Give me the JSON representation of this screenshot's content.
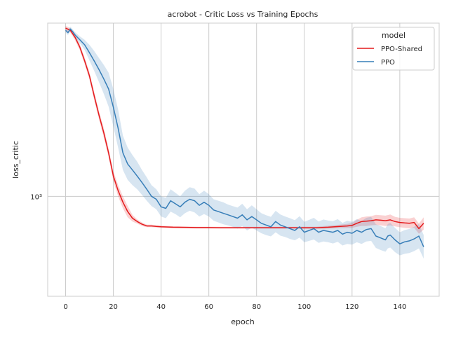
{
  "chart_data": {
    "type": "line",
    "title": "acrobot - Critic Loss vs Training Epochs",
    "xlabel": "epoch",
    "ylabel": "loss_critic",
    "xlim": [
      -7.5,
      156.5
    ],
    "ylim_log10": [
      2.7,
      3.52
    ],
    "yscale": "log",
    "grid": true,
    "legend": {
      "title": "model",
      "placement": "top-right"
    },
    "x_ticks": [
      0,
      20,
      40,
      60,
      80,
      100,
      120,
      140
    ],
    "x_tick_labels": [
      "0",
      "20",
      "40",
      "60",
      "80",
      "100",
      "120",
      "140"
    ],
    "y_ticks": [
      1000
    ],
    "y_tick_labels": [
      "10³"
    ],
    "series": [
      {
        "name": "PPO-Shared",
        "color": "#e41a1c",
        "epochs": [
          0,
          2,
          4,
          6,
          8,
          10,
          12,
          14,
          16,
          18,
          20,
          22,
          24,
          26,
          28,
          30,
          32,
          34,
          36,
          38,
          40,
          45,
          50,
          55,
          60,
          65,
          70,
          75,
          80,
          85,
          90,
          95,
          100,
          105,
          110,
          115,
          118,
          120,
          122,
          124,
          126,
          128,
          130,
          132,
          134,
          136,
          138,
          140,
          142,
          144,
          146,
          148,
          150
        ],
        "values": [
          3200,
          3150,
          3000,
          2800,
          2550,
          2300,
          2000,
          1750,
          1550,
          1350,
          1150,
          1040,
          960,
          900,
          860,
          840,
          825,
          815,
          815,
          812,
          810,
          808,
          807,
          806,
          806,
          805,
          805,
          805,
          805,
          805,
          805,
          805,
          805,
          805,
          808,
          812,
          815,
          818,
          830,
          840,
          842,
          845,
          850,
          848,
          845,
          850,
          840,
          835,
          832,
          830,
          835,
          800,
          830
        ],
        "lower": [
          3150,
          3100,
          2940,
          2740,
          2490,
          2240,
          1940,
          1700,
          1500,
          1310,
          1110,
          1000,
          920,
          865,
          840,
          828,
          815,
          808,
          808,
          806,
          804,
          802,
          802,
          801,
          801,
          800,
          800,
          800,
          800,
          800,
          800,
          800,
          799,
          799,
          800,
          802,
          803,
          804,
          810,
          815,
          815,
          818,
          820,
          818,
          815,
          818,
          812,
          808,
          804,
          802,
          805,
          772,
          795
        ],
        "upper": [
          3250,
          3200,
          3060,
          2860,
          2610,
          2360,
          2060,
          1800,
          1600,
          1390,
          1190,
          1080,
          1000,
          935,
          880,
          852,
          835,
          822,
          822,
          818,
          816,
          814,
          812,
          811,
          811,
          810,
          810,
          810,
          810,
          810,
          810,
          810,
          811,
          811,
          816,
          822,
          827,
          832,
          850,
          865,
          870,
          872,
          880,
          878,
          875,
          882,
          868,
          862,
          860,
          858,
          865,
          828,
          865
        ]
      },
      {
        "name": "PPO",
        "color": "#377eb8",
        "epochs": [
          0,
          1,
          2,
          3,
          4,
          6,
          8,
          10,
          12,
          14,
          16,
          18,
          20,
          22,
          24,
          26,
          28,
          30,
          32,
          34,
          36,
          38,
          40,
          42,
          44,
          46,
          48,
          50,
          52,
          54,
          56,
          58,
          60,
          62,
          64,
          66,
          68,
          70,
          72,
          74,
          76,
          78,
          80,
          82,
          84,
          86,
          88,
          90,
          92,
          94,
          96,
          98,
          100,
          102,
          104,
          106,
          108,
          110,
          112,
          114,
          116,
          118,
          120,
          122,
          124,
          126,
          128,
          130,
          132,
          134,
          135,
          136,
          138,
          140,
          142,
          144,
          146,
          148,
          150
        ],
        "values": [
          3150,
          3100,
          3180,
          3120,
          3050,
          2950,
          2850,
          2700,
          2550,
          2400,
          2250,
          2100,
          1850,
          1600,
          1350,
          1250,
          1200,
          1150,
          1100,
          1050,
          1000,
          980,
          930,
          920,
          970,
          950,
          930,
          960,
          980,
          970,
          940,
          960,
          940,
          910,
          900,
          890,
          880,
          870,
          860,
          880,
          850,
          870,
          850,
          830,
          820,
          810,
          840,
          820,
          810,
          800,
          790,
          810,
          780,
          790,
          800,
          780,
          790,
          785,
          780,
          790,
          770,
          780,
          775,
          790,
          780,
          795,
          800,
          760,
          750,
          740,
          760,
          765,
          740,
          720,
          730,
          735,
          745,
          760,
          705
        ],
        "lower": [
          3100,
          3050,
          3130,
          3070,
          2990,
          2880,
          2750,
          2560,
          2380,
          2200,
          2030,
          1860,
          1620,
          1400,
          1200,
          1120,
          1080,
          1050,
          1010,
          970,
          935,
          915,
          870,
          860,
          900,
          885,
          865,
          890,
          905,
          895,
          870,
          885,
          870,
          845,
          835,
          825,
          818,
          810,
          800,
          815,
          790,
          805,
          790,
          775,
          765,
          758,
          780,
          762,
          755,
          745,
          738,
          752,
          728,
          735,
          742,
          725,
          732,
          728,
          722,
          730,
          712,
          720,
          716,
          728,
          720,
          732,
          735,
          700,
          690,
          682,
          698,
          702,
          680,
          665,
          672,
          676,
          685,
          698,
          650
        ],
        "upper": [
          3200,
          3150,
          3230,
          3170,
          3110,
          3020,
          2950,
          2850,
          2730,
          2600,
          2480,
          2350,
          2100,
          1820,
          1520,
          1400,
          1330,
          1270,
          1200,
          1140,
          1080,
          1050,
          1000,
          990,
          1050,
          1025,
          1000,
          1040,
          1065,
          1055,
          1015,
          1040,
          1015,
          980,
          970,
          960,
          945,
          935,
          925,
          950,
          915,
          940,
          915,
          890,
          878,
          868,
          905,
          882,
          870,
          860,
          848,
          872,
          838,
          850,
          862,
          840,
          852,
          846,
          842,
          854,
          832,
          845,
          838,
          855,
          843,
          862,
          868,
          824,
          814,
          802,
          826,
          832,
          804,
          780,
          792,
          798,
          810,
          826,
          765
        ]
      }
    ]
  }
}
